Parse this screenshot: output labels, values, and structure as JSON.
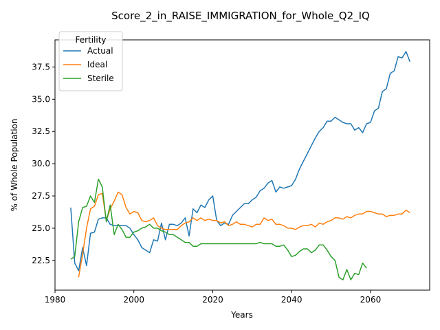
{
  "chart_data": {
    "type": "line",
    "title": "Score_2_in_RAISE_IMMIGRATION_for_Whole_Q2_IQ",
    "xlabel": "Years",
    "ylabel": "% of Whole Population",
    "xlim": [
      1980,
      2075
    ],
    "ylim": [
      20.2,
      39.6
    ],
    "xticks": [
      1980,
      2000,
      2020,
      2040,
      2060
    ],
    "yticks": [
      22.5,
      25.0,
      27.5,
      30.0,
      32.5,
      35.0,
      37.5
    ],
    "xtick_labels": [
      "1980",
      "2000",
      "2020",
      "2040",
      "2060"
    ],
    "ytick_labels": [
      "22.5",
      "25.0",
      "27.5",
      "30.0",
      "32.5",
      "35.0",
      "37.5"
    ],
    "grid": false,
    "legend": {
      "title": "Fertility",
      "placement": "top-left"
    },
    "series": [
      {
        "name": "Actual",
        "color": "#1f77b4",
        "x": [
          1984,
          1985,
          1986,
          1987,
          1988,
          1989,
          1990,
          1991,
          1992,
          1993,
          1994,
          1995,
          1996,
          1997,
          1998,
          1999,
          2000,
          2001,
          2002,
          2003,
          2004,
          2005,
          2006,
          2007,
          2008,
          2009,
          2010,
          2011,
          2012,
          2013,
          2014,
          2015,
          2016,
          2017,
          2018,
          2019,
          2020,
          2021,
          2022,
          2023,
          2024,
          2025,
          2026,
          2027,
          2028,
          2029,
          2030,
          2031,
          2032,
          2033,
          2034,
          2035,
          2036,
          2037,
          2038,
          2039,
          2040,
          2041,
          2042,
          2043,
          2044,
          2045,
          2046,
          2047,
          2048,
          2049,
          2050,
          2051,
          2052,
          2053,
          2054,
          2055,
          2056,
          2057,
          2058,
          2059,
          2060,
          2061,
          2062,
          2063,
          2064,
          2065,
          2066,
          2067,
          2068,
          2069,
          2070
        ],
        "y": [
          26.6,
          22.3,
          21.7,
          23.5,
          22.1,
          24.6,
          24.7,
          25.7,
          25.8,
          25.8,
          25.3,
          25.2,
          25.2,
          25.2,
          25.2,
          25.0,
          24.5,
          24.1,
          23.5,
          23.3,
          23.1,
          24.1,
          24.0,
          25.4,
          24.1,
          25.3,
          25.3,
          25.2,
          25.4,
          25.8,
          24.4,
          26.5,
          26.2,
          26.8,
          26.6,
          27.2,
          27.5,
          25.6,
          25.2,
          25.4,
          25.3,
          26.0,
          26.3,
          26.6,
          26.9,
          26.9,
          27.2,
          27.4,
          27.9,
          28.1,
          28.5,
          28.7,
          27.8,
          28.2,
          28.1,
          28.2,
          28.3,
          28.8,
          29.6,
          30.2,
          30.8,
          31.4,
          32.0,
          32.5,
          32.8,
          33.3,
          33.3,
          33.6,
          33.4,
          33.2,
          33.1,
          33.1,
          32.6,
          32.8,
          32.4,
          33.1,
          33.2,
          34.1,
          34.3,
          35.6,
          35.8,
          37.0,
          37.2,
          38.3,
          38.2,
          38.7,
          37.9
        ]
      },
      {
        "name": "Ideal",
        "color": "#ff7f0e",
        "x": [
          1986,
          1987,
          1988,
          1989,
          1990,
          1991,
          1992,
          1993,
          1994,
          1995,
          1996,
          1997,
          1998,
          1999,
          2000,
          2001,
          2002,
          2003,
          2004,
          2005,
          2006,
          2007,
          2008,
          2009,
          2010,
          2011,
          2012,
          2013,
          2014,
          2015,
          2016,
          2017,
          2018,
          2019,
          2020,
          2021,
          2022,
          2023,
          2024,
          2025,
          2026,
          2027,
          2028,
          2029,
          2030,
          2031,
          2032,
          2033,
          2034,
          2035,
          2036,
          2037,
          2038,
          2039,
          2040,
          2041,
          2042,
          2043,
          2044,
          2045,
          2046,
          2047,
          2048,
          2049,
          2050,
          2051,
          2052,
          2053,
          2054,
          2055,
          2056,
          2057,
          2058,
          2059,
          2060,
          2061,
          2062,
          2063,
          2064,
          2065,
          2066,
          2067,
          2068,
          2069,
          2070
        ],
        "y": [
          21.2,
          23.0,
          25.0,
          26.5,
          26.7,
          27.6,
          27.7,
          25.6,
          26.5,
          27.1,
          27.8,
          27.6,
          26.6,
          26.1,
          26.3,
          26.2,
          25.6,
          25.5,
          25.6,
          25.8,
          25.2,
          25.0,
          24.9,
          24.9,
          24.9,
          24.9,
          25.2,
          25.4,
          25.5,
          25.8,
          25.6,
          25.8,
          25.6,
          25.7,
          25.6,
          25.6,
          25.4,
          25.5,
          25.2,
          25.3,
          25.5,
          25.3,
          25.3,
          25.2,
          25.1,
          25.3,
          25.3,
          25.8,
          25.6,
          25.7,
          25.3,
          25.3,
          25.2,
          25.0,
          25.0,
          24.9,
          25.1,
          25.2,
          25.2,
          25.3,
          25.1,
          25.4,
          25.3,
          25.5,
          25.6,
          25.8,
          25.8,
          25.7,
          25.9,
          25.8,
          26.0,
          26.1,
          26.1,
          26.3,
          26.3,
          26.2,
          26.1,
          26.1,
          25.9,
          26.0,
          26.0,
          26.1,
          26.1,
          26.4,
          26.2
        ]
      },
      {
        "name": "Sterile",
        "color": "#2ca02c",
        "x": [
          1984,
          1985,
          1986,
          1987,
          1988,
          1989,
          1990,
          1991,
          1992,
          1993,
          1994,
          1995,
          1996,
          1997,
          1998,
          1999,
          2000,
          2001,
          2002,
          2003,
          2004,
          2005,
          2006,
          2007,
          2008,
          2009,
          2010,
          2011,
          2012,
          2013,
          2014,
          2015,
          2016,
          2017,
          2018,
          2019,
          2020,
          2021,
          2022,
          2023,
          2024,
          2025,
          2026,
          2027,
          2028,
          2029,
          2030,
          2031,
          2032,
          2033,
          2034,
          2035,
          2036,
          2037,
          2038,
          2039,
          2040,
          2041,
          2042,
          2043,
          2044,
          2045,
          2046,
          2047,
          2048,
          2049,
          2050,
          2051,
          2052,
          2053,
          2054,
          2055,
          2056,
          2057,
          2058,
          2059
        ],
        "y": [
          22.6,
          22.8,
          25.5,
          26.6,
          26.7,
          27.5,
          27.0,
          28.8,
          28.2,
          25.5,
          26.8,
          24.5,
          25.3,
          24.9,
          24.3,
          24.3,
          24.7,
          24.8,
          25.0,
          25.1,
          25.3,
          25.0,
          25.0,
          24.8,
          24.7,
          24.5,
          24.5,
          24.3,
          24.1,
          23.9,
          23.9,
          23.6,
          23.6,
          23.8,
          23.8,
          23.8,
          23.8,
          23.8,
          23.8,
          23.8,
          23.8,
          23.8,
          23.8,
          23.8,
          23.8,
          23.8,
          23.8,
          23.8,
          23.9,
          23.8,
          23.8,
          23.8,
          23.6,
          23.6,
          23.7,
          23.3,
          22.8,
          22.9,
          23.2,
          23.4,
          23.4,
          23.1,
          23.3,
          23.7,
          23.7,
          23.3,
          22.8,
          22.5,
          21.2,
          21.0,
          21.8,
          21.0,
          21.5,
          21.4,
          22.3,
          21.9
        ]
      }
    ]
  }
}
